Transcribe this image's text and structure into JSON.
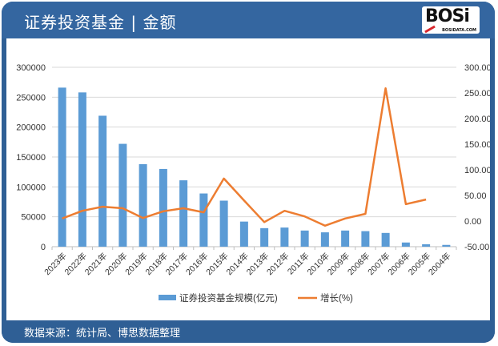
{
  "header": {
    "title": "证券投资基金 | 金额",
    "logo_text": "BOSi",
    "logo_subtext": "BOSIDATA.COM"
  },
  "footer": {
    "source": "数据来源：统计局、博思数据整理"
  },
  "legend": {
    "bar_label": "证券投资基金规模(亿元)",
    "line_label": "增长(%)"
  },
  "colors": {
    "header_bg": "#3466a0",
    "bar": "#5b9bd5",
    "line": "#ed7d31",
    "grid": "#d9d9d9"
  },
  "chart_data": {
    "type": "bar",
    "title": "证券投资基金 | 金额",
    "categories": [
      "2023年",
      "2022年",
      "2021年",
      "2020年",
      "2019年",
      "2018年",
      "2017年",
      "2016年",
      "2015年",
      "2014年",
      "2013年",
      "2012年",
      "2011年",
      "2010年",
      "2009年",
      "2008年",
      "2007年",
      "2006年",
      "2005年",
      "2004年"
    ],
    "series": [
      {
        "name": "证券投资基金规模(亿元)",
        "type": "bar",
        "axis": "left",
        "values": [
          266000,
          258000,
          219000,
          172000,
          138000,
          130000,
          111000,
          89000,
          77000,
          42000,
          31000,
          32000,
          27000,
          24000,
          27000,
          26000,
          23000,
          7000,
          4000,
          3000
        ]
      },
      {
        "name": "增长(%)",
        "type": "line",
        "axis": "right",
        "values": [
          5,
          20,
          28,
          25,
          6,
          19,
          25,
          17,
          83,
          40,
          -2,
          20,
          9,
          -9,
          5,
          14,
          259,
          33,
          42,
          null
        ]
      }
    ],
    "y_left": {
      "min": 0,
      "max": 300000,
      "ticks": [
        "0",
        "50000",
        "100000",
        "150000",
        "200000",
        "250000",
        "300000"
      ]
    },
    "y_right": {
      "min": -50,
      "max": 300,
      "ticks": [
        "-50.00",
        "0.00",
        "50.00",
        "100.00",
        "150.00",
        "200.00",
        "250.00",
        "300.00"
      ]
    },
    "xlabel": "",
    "ylabel": "",
    "grid": true,
    "legend_position": "bottom"
  }
}
